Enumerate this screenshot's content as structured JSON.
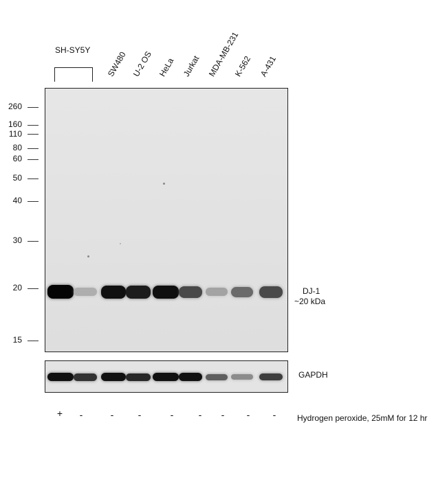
{
  "group_label": "SH-SY5Y",
  "lanes": [
    "SW480",
    "U-2 OS",
    "HeLa",
    "Jurkat",
    "MDA-MB-231",
    "K-562",
    "A-431"
  ],
  "mw_markers": [
    "260",
    "160",
    "110",
    "80",
    "60",
    "50",
    "40",
    "30",
    "20",
    "15"
  ],
  "target": {
    "name": "DJ-1",
    "size": "~20 kDa"
  },
  "loading_control": "GAPDH",
  "treatment_label": "Hydrogen peroxide, 25mM for 12 hr",
  "treatment_marks": [
    "+",
    "-",
    "-",
    "-",
    "-",
    "-",
    "-",
    "-",
    "-"
  ],
  "dj1_band_intensity": [
    1.0,
    0.25,
    0.95,
    0.9,
    0.95,
    0.7,
    0.3,
    0.55,
    0.7
  ],
  "gapdh_band_intensity": [
    0.95,
    0.8,
    0.95,
    0.85,
    0.95,
    0.95,
    0.6,
    0.4,
    0.75
  ]
}
